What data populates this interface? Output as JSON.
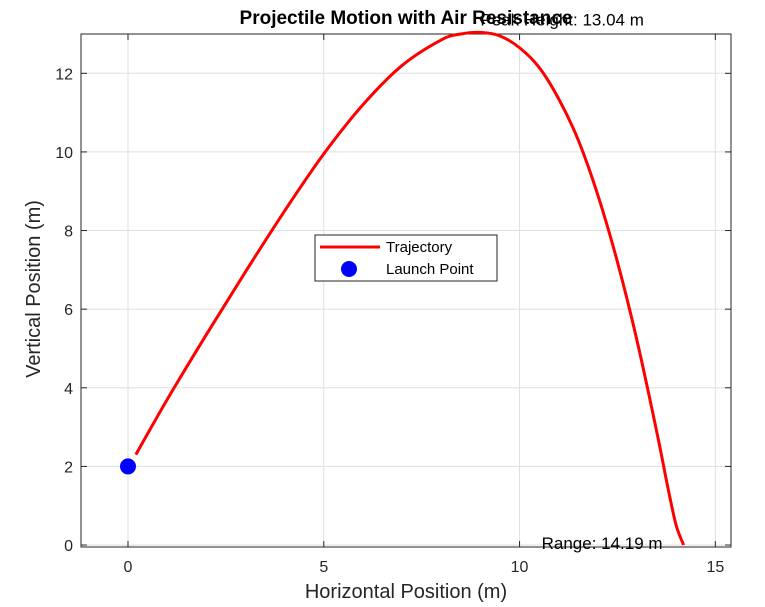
{
  "chart_data": {
    "type": "line",
    "title": "Projectile Motion with Air Resistance",
    "xlabel": "Horizontal Position (m)",
    "ylabel": "Vertical Position (m)",
    "xlim": [
      -1.2,
      15.4
    ],
    "ylim": [
      -0.05,
      13.0
    ],
    "xticks": [
      0,
      5,
      10,
      15
    ],
    "yticks": [
      0,
      2,
      4,
      6,
      8,
      10,
      12
    ],
    "grid": true,
    "legend_position": "center",
    "series": [
      {
        "name": "Trajectory",
        "type": "line",
        "color": "#ff0000",
        "x": [
          0.2,
          1.0,
          2.0,
          3.0,
          4.0,
          5.0,
          6.0,
          7.0,
          8.0,
          8.5,
          9.0,
          9.5,
          10.0,
          10.5,
          11.0,
          11.5,
          12.0,
          12.5,
          13.0,
          13.5,
          13.8,
          14.0,
          14.19
        ],
        "y": [
          2.3,
          3.7,
          5.35,
          6.95,
          8.5,
          9.95,
          11.2,
          12.2,
          12.85,
          13.0,
          13.04,
          12.95,
          12.65,
          12.15,
          11.35,
          10.3,
          8.9,
          7.2,
          5.2,
          2.9,
          1.4,
          0.5,
          0.0
        ]
      },
      {
        "name": "Launch Point",
        "type": "scatter",
        "color": "#0000ff",
        "x": [
          0
        ],
        "y": [
          2
        ]
      }
    ],
    "annotations": [
      {
        "text": "Peak Height: 13.04 m",
        "x": 9.0,
        "y": 13.04
      },
      {
        "text": "Range: 14.19 m",
        "x": 14.19,
        "y": 0
      }
    ]
  }
}
